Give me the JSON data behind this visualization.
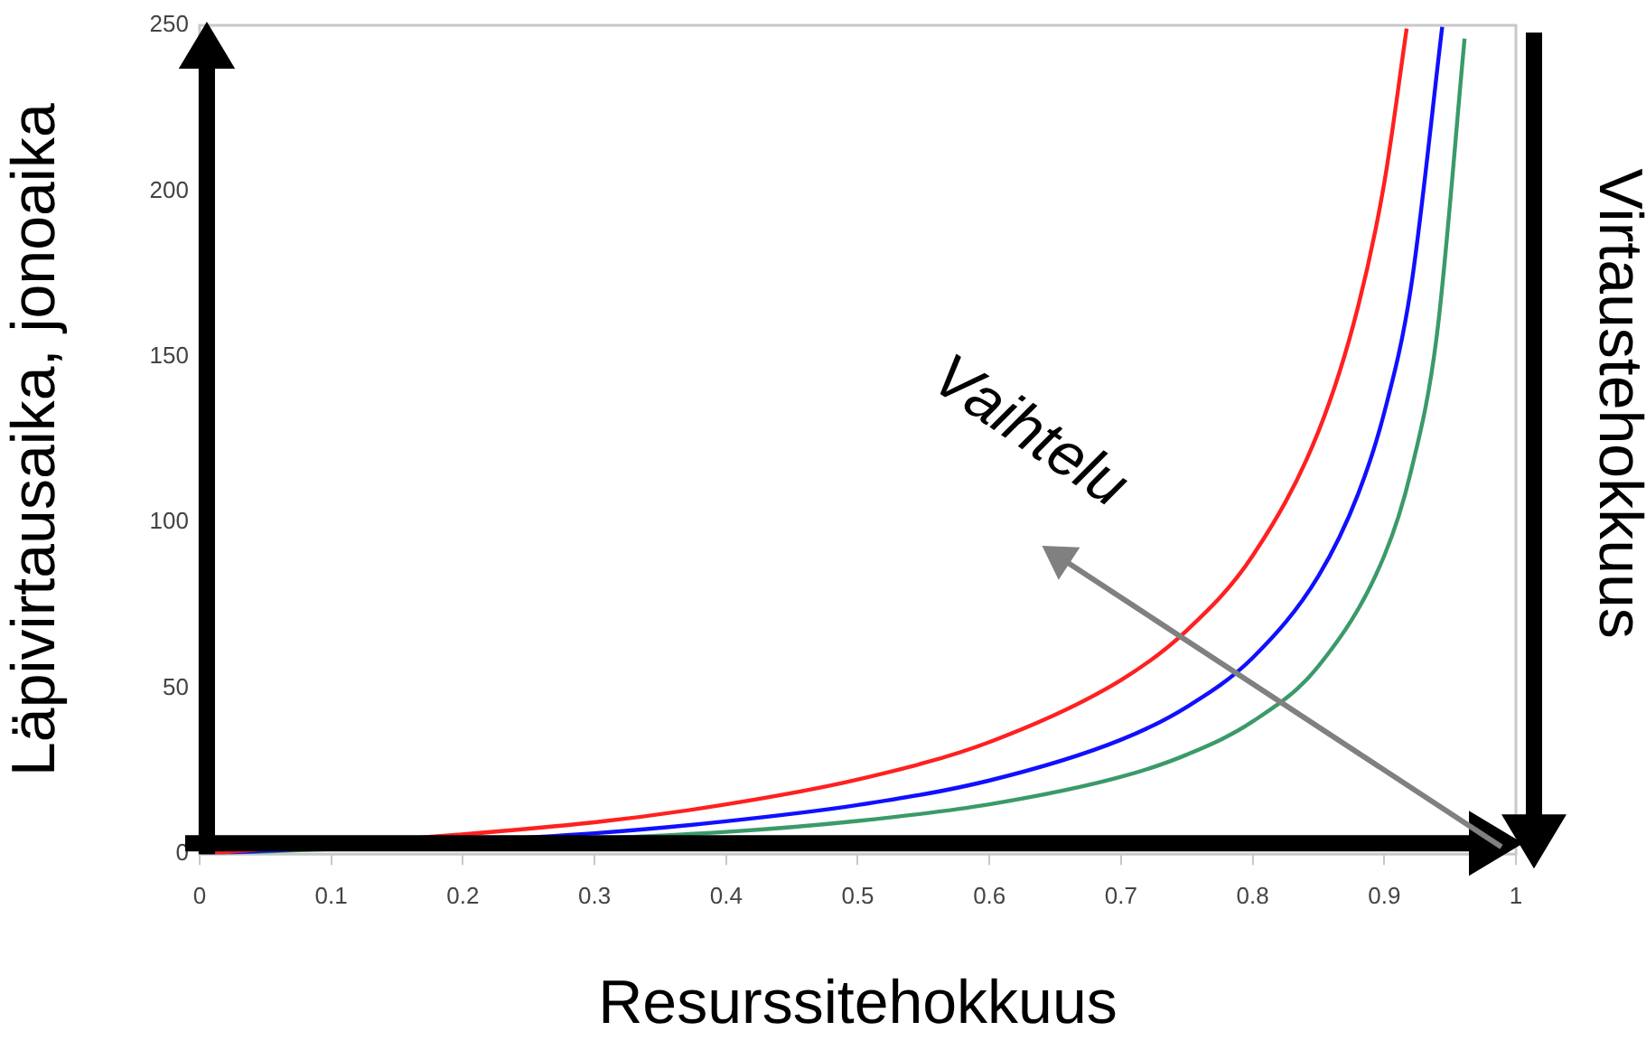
{
  "chart_data": {
    "type": "line",
    "xlabel": "Resurssitehokkuus",
    "ylabel": "Läpivirtausaika, jonoaika",
    "xlim": [
      0,
      1
    ],
    "xticks": [
      0,
      0.1,
      0.2,
      0.3,
      0.4,
      0.5,
      0.6,
      0.7,
      0.8,
      0.9,
      1
    ],
    "ylim": [
      0,
      250
    ],
    "yticks": [
      0,
      50,
      100,
      150,
      200,
      250
    ],
    "grid": false,
    "legend": false,
    "marker": "none",
    "line_style": "solid",
    "annotations": [
      "Vaihtelu",
      "Virtaustehokkuus"
    ],
    "series": [
      {
        "color": "#ff2020",
        "x": [
          0,
          0.3,
          0.4,
          0.5,
          0.6,
          0.7,
          0.75,
          0.8,
          0.85,
          0.88,
          0.9,
          0.917
        ],
        "values": [
          0,
          9.6,
          15,
          22.5,
          33.8,
          52.5,
          67.5,
          90,
          127.5,
          165,
          202.5,
          249
        ]
      },
      {
        "color": "#1010ff",
        "x": [
          0,
          0.3,
          0.4,
          0.5,
          0.6,
          0.7,
          0.75,
          0.8,
          0.85,
          0.88,
          0.9,
          0.92,
          0.944
        ],
        "values": [
          0,
          6.3,
          9.9,
          14.8,
          22.2,
          34.5,
          44.4,
          59.2,
          83.9,
          108.5,
          133.2,
          170.2,
          249.5
        ]
      },
      {
        "color": "#3a9a6a",
        "x": [
          0,
          0.4,
          0.5,
          0.6,
          0.7,
          0.75,
          0.8,
          0.85,
          0.9,
          0.92,
          0.94,
          0.961
        ],
        "values": [
          0,
          6.7,
          10,
          15,
          23.3,
          30,
          40,
          56.7,
          90,
          115,
          156.7,
          246
        ]
      }
    ]
  }
}
